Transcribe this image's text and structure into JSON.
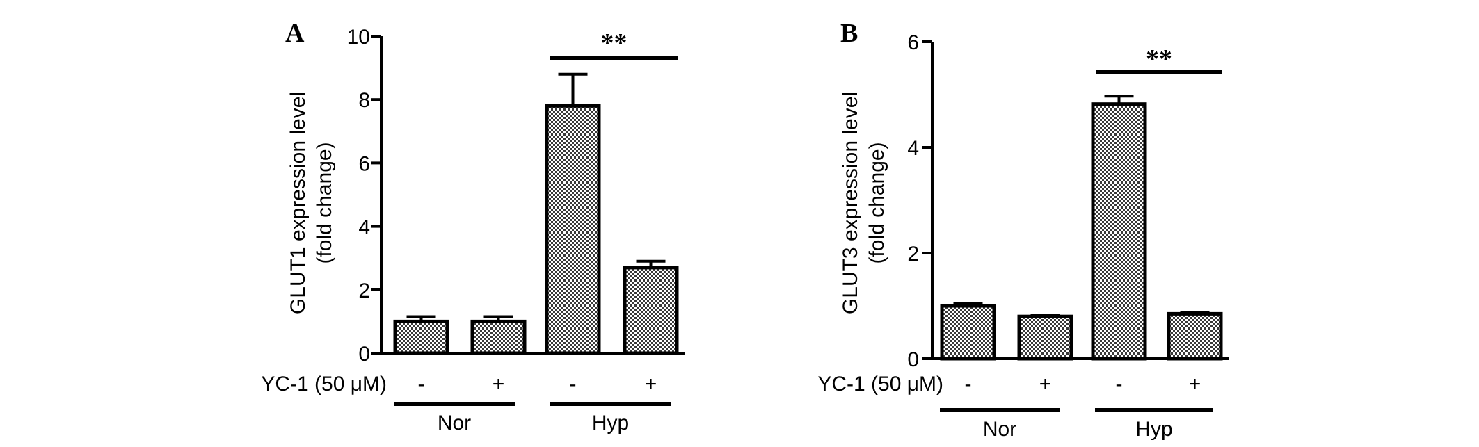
{
  "chart_data": [
    {
      "type": "bar",
      "panel_label": "A",
      "ylabel_lines": [
        "GLUT1 expression level",
        "(fold change)"
      ],
      "ylim": [
        0,
        10
      ],
      "yticks": [
        "0",
        "2",
        "4",
        "6",
        "8",
        "10"
      ],
      "treatment_label": "YC-1 (50 μM)",
      "categories": [
        "-",
        "+",
        "-",
        "+"
      ],
      "groups": [
        {
          "label": "Nor",
          "bars": [
            0,
            1
          ]
        },
        {
          "label": "Hyp",
          "bars": [
            2,
            3
          ]
        }
      ],
      "values": [
        1.0,
        1.0,
        7.8,
        2.7
      ],
      "errors": [
        0.15,
        0.15,
        1.0,
        0.2
      ],
      "significance": {
        "label": "**",
        "between": [
          2,
          3
        ]
      },
      "grid": false,
      "legend": "none"
    },
    {
      "type": "bar",
      "panel_label": "B",
      "ylabel_lines": [
        "GLUT3 expression level",
        "(fold change)"
      ],
      "ylim": [
        0,
        6
      ],
      "yticks": [
        "0",
        "2",
        "4",
        "6"
      ],
      "treatment_label": "YC-1 (50 μM)",
      "categories": [
        "-",
        "+",
        "-",
        "+"
      ],
      "groups": [
        {
          "label": "Nor",
          "bars": [
            0,
            1
          ]
        },
        {
          "label": "Hyp",
          "bars": [
            2,
            3
          ]
        }
      ],
      "values": [
        1.0,
        0.8,
        4.82,
        0.85
      ],
      "errors": [
        0.05,
        0.02,
        0.15,
        0.03
      ],
      "significance": {
        "label": "**",
        "between": [
          2,
          3
        ]
      },
      "grid": false,
      "legend": "none"
    }
  ]
}
